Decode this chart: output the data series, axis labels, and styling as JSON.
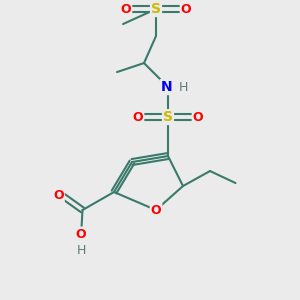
{
  "bg_color": "#ebebeb",
  "bond_color": "#3a7a6a",
  "bond_width": 1.5,
  "atom_colors": {
    "O": "#ff0000",
    "S": "#ccbb00",
    "N": "#0000ee",
    "H": "#607878",
    "C": "#3a7a6a"
  },
  "figsize": [
    3.0,
    3.0
  ],
  "dpi": 100,
  "xlim": [
    0,
    10
  ],
  "ylim": [
    0,
    10
  ]
}
